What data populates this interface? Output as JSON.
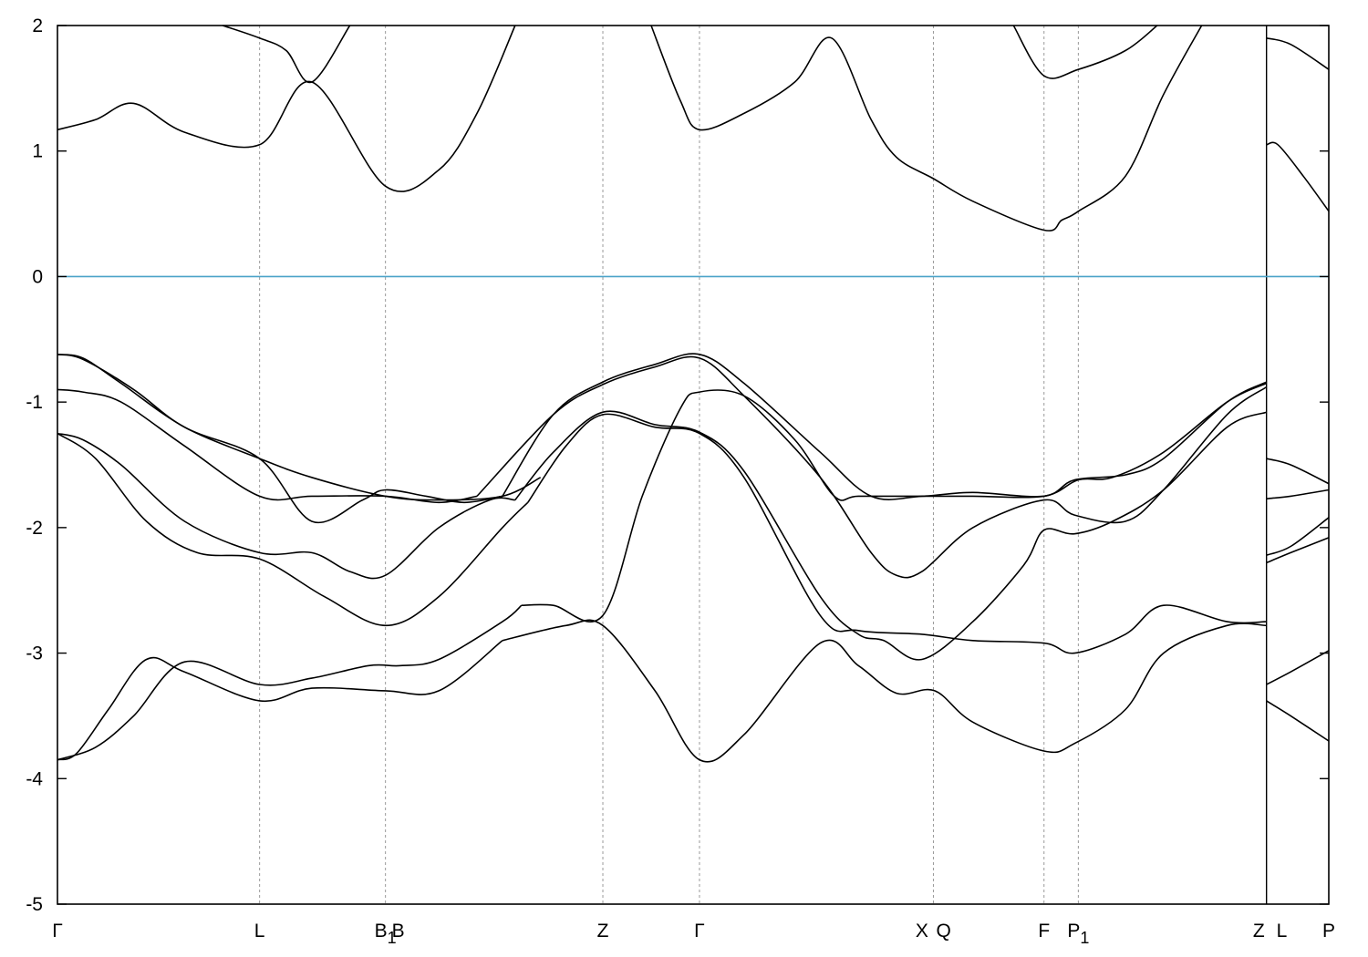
{
  "chart_data": {
    "type": "line",
    "title": "",
    "xlabel": "",
    "ylabel": "",
    "ylim": [
      -5,
      2
    ],
    "yticks": [
      2,
      1,
      0,
      -1,
      -2,
      -3,
      -4,
      -5
    ],
    "ytick_labels": [
      "2",
      "1",
      "0",
      "-1",
      "-2",
      "-3",
      "-4",
      "-5"
    ],
    "xlim": [
      0,
      1
    ],
    "high_symmetry_points": [
      {
        "label": "Γ",
        "sub": "",
        "x": 0.0
      },
      {
        "label": "L",
        "sub": "",
        "x": 0.159
      },
      {
        "label": "B",
        "sub": "1",
        "x": 0.258
      },
      {
        "label": "B",
        "sub": "",
        "x": 0.268
      },
      {
        "label": "Z",
        "sub": "",
        "x": 0.429
      },
      {
        "label": "Γ",
        "sub": "",
        "x": 0.505
      },
      {
        "label": "X",
        "sub": "",
        "x": 0.68
      },
      {
        "label": "Q",
        "sub": "",
        "x": 0.697
      },
      {
        "label": "F",
        "sub": "",
        "x": 0.776
      },
      {
        "label": "P",
        "sub": "1",
        "x": 0.803
      },
      {
        "label": "Z",
        "sub": "",
        "x": 0.945
      },
      {
        "label": "L",
        "sub": "",
        "x": 0.963
      },
      {
        "label": "P",
        "sub": "",
        "x": 1.0
      }
    ],
    "dashed_lines_x": [
      0.159,
      0.258,
      0.429,
      0.505,
      0.689,
      0.776,
      0.803,
      0.951
    ],
    "discontinuity_x": 0.951,
    "fermi_level": 0,
    "series": [
      {
        "x": [
          0,
          0.03,
          0.06,
          0.1,
          0.159,
          0.2,
          0.245,
          0.27,
          0.3,
          0.35,
          0.365
        ],
        "y": [
          -3.85,
          -3.75,
          -3.5,
          -3.07,
          -3.25,
          -3.2,
          -3.1,
          -3.1,
          -3.05,
          -2.75,
          -2.62
        ]
      },
      {
        "x": [
          0.365,
          0.39,
          0.429,
          0.46,
          0.49,
          0.505,
          0.54,
          0.58,
          0.611,
          0.63,
          0.68,
          0.72,
          0.776,
          0.803,
          0.83,
          0.87,
          0.92,
          0.951
        ],
        "y": [
          -2.62,
          -2.62,
          -2.7,
          -1.75,
          -1.05,
          -0.92,
          -0.95,
          -1.3,
          -1.75,
          -1.75,
          -1.75,
          -1.75,
          -1.75,
          -1.62,
          -1.6,
          -1.4,
          -1.0,
          -0.85
        ]
      },
      {
        "x": [
          0,
          0.03,
          0.07,
          0.11,
          0.159,
          0.21,
          0.258,
          0.3,
          0.35,
          0.37
        ],
        "y": [
          -1.25,
          -1.45,
          -1.95,
          -2.2,
          -2.25,
          -2.55,
          -2.78,
          -2.55,
          -2.0,
          -1.8
        ]
      },
      {
        "x": [
          0.37,
          0.4,
          0.429,
          0.47,
          0.505,
          0.54,
          0.6,
          0.63,
          0.68,
          0.72,
          0.776,
          0.8,
          0.84,
          0.87,
          0.92,
          0.951
        ],
        "y": [
          -1.8,
          -1.35,
          -1.1,
          -1.2,
          -1.25,
          -1.6,
          -2.7,
          -2.82,
          -2.85,
          -2.9,
          -2.92,
          -3.0,
          -2.85,
          -2.62,
          -2.75,
          -2.75
        ]
      },
      {
        "x": [
          0,
          0.02,
          0.05,
          0.1,
          0.159,
          0.2,
          0.23,
          0.258,
          0.3,
          0.34,
          0.36
        ],
        "y": [
          -1.25,
          -1.3,
          -1.5,
          -1.95,
          -2.2,
          -2.2,
          -2.35,
          -2.38,
          -2.0,
          -1.78,
          -1.78
        ]
      },
      {
        "x": [
          0.36,
          0.39,
          0.429,
          0.47,
          0.505,
          0.54,
          0.6,
          0.63,
          0.65,
          0.68,
          0.72,
          0.76,
          0.776,
          0.8,
          0.83,
          0.87,
          0.92,
          0.951
        ],
        "y": [
          -1.78,
          -1.4,
          -1.08,
          -1.18,
          -1.24,
          -1.55,
          -2.55,
          -2.85,
          -2.9,
          -3.05,
          -2.75,
          -2.3,
          -2.02,
          -2.05,
          -1.95,
          -1.7,
          -1.2,
          -1.08
        ]
      },
      {
        "x": [
          0,
          0.02,
          0.05,
          0.1,
          0.159,
          0.2,
          0.258,
          0.3,
          0.33
        ],
        "y": [
          -0.9,
          -0.92,
          -1.0,
          -1.35,
          -1.75,
          -1.75,
          -1.75,
          -1.8,
          -1.75
        ]
      },
      {
        "x": [
          0.33,
          0.39,
          0.429,
          0.47,
          0.505,
          0.54,
          0.6,
          0.64,
          0.66,
          0.68,
          0.72,
          0.776,
          0.8,
          0.84,
          0.87,
          0.92,
          0.951
        ],
        "y": [
          -1.75,
          -1.1,
          -0.86,
          -0.72,
          -0.65,
          -0.95,
          -1.6,
          -2.2,
          -2.38,
          -2.35,
          -2.0,
          -1.78,
          -1.9,
          -1.95,
          -1.7,
          -1.1,
          -0.88
        ]
      },
      {
        "x": [
          0,
          0.02,
          0.05,
          0.1,
          0.159,
          0.2,
          0.24,
          0.258,
          0.29,
          0.32,
          0.35
        ],
        "y": [
          -0.62,
          -0.65,
          -0.85,
          -1.2,
          -1.45,
          -1.95,
          -1.78,
          -1.7,
          -1.75,
          -1.8,
          -1.75
        ]
      },
      {
        "x": [
          0.35,
          0.39,
          0.429,
          0.47,
          0.505,
          0.54,
          0.6,
          0.64,
          0.68,
          0.72,
          0.776,
          0.8,
          0.84,
          0.87,
          0.92,
          0.951
        ],
        "y": [
          -1.75,
          -1.1,
          -0.84,
          -0.7,
          -0.62,
          -0.85,
          -1.4,
          -1.75,
          -1.75,
          -1.72,
          -1.75,
          -1.62,
          -1.58,
          -1.45,
          -1.0,
          -0.84
        ]
      },
      {
        "x": [
          0,
          0.02,
          0.06,
          0.1,
          0.159,
          0.2,
          0.258,
          0.3,
          0.35,
          0.38
        ],
        "y": [
          -0.62,
          -0.66,
          -0.9,
          -1.2,
          -1.45,
          -1.6,
          -1.75,
          -1.78,
          -1.75,
          -1.6
        ]
      },
      {
        "x": [
          0,
          0.015,
          0.04,
          0.07,
          0.1,
          0.159,
          0.2,
          0.258,
          0.3,
          0.35
        ],
        "y": [
          -3.85,
          -3.8,
          -3.45,
          -3.05,
          -3.15,
          -3.38,
          -3.28,
          -3.3,
          -3.3,
          -2.9
        ]
      },
      {
        "x": [
          0.35,
          0.4,
          0.429,
          0.47,
          0.505,
          0.54,
          0.6,
          0.63,
          0.66,
          0.69,
          0.72,
          0.776,
          0.8,
          0.84,
          0.87,
          0.92,
          0.951
        ],
        "y": [
          -2.9,
          -2.78,
          -2.78,
          -3.3,
          -3.85,
          -3.65,
          -2.92,
          -3.1,
          -3.32,
          -3.3,
          -3.55,
          -3.78,
          -3.72,
          -3.45,
          -3.0,
          -2.78,
          -2.78
        ]
      },
      {
        "x": [
          0,
          0.03,
          0.06,
          0.1,
          0.159,
          0.2,
          0.258,
          0.3,
          0.33,
          0.36
        ],
        "y": [
          1.17,
          1.25,
          1.38,
          1.15,
          1.05,
          1.55,
          0.72,
          0.85,
          1.3,
          2.0
        ]
      },
      {
        "x": [
          0.467,
          0.49,
          0.505,
          0.54,
          0.58,
          0.609,
          0.64,
          0.66,
          0.689,
          0.72,
          0.776,
          0.79,
          0.803,
          0.84,
          0.87,
          0.9
        ],
        "y": [
          2.0,
          1.4,
          1.17,
          1.3,
          1.55,
          1.9,
          1.25,
          0.95,
          0.78,
          0.6,
          0.37,
          0.45,
          0.52,
          0.8,
          1.45,
          2.0
        ]
      },
      {
        "x": [
          0.13,
          0.159,
          0.18,
          0.2,
          0.23
        ],
        "y": [
          2.0,
          1.9,
          1.8,
          1.55,
          2.0
        ]
      },
      {
        "x": [
          0.752,
          0.776,
          0.803,
          0.84,
          0.865
        ],
        "y": [
          2.0,
          1.6,
          1.65,
          1.8,
          2.0
        ]
      },
      {
        "x": [
          0.951,
          0.97,
          1.0
        ],
        "y": [
          1.9,
          1.85,
          1.65
        ]
      },
      {
        "x": [
          0.951,
          0.96,
          0.98,
          1.0
        ],
        "y": [
          1.05,
          1.05,
          0.8,
          0.52
        ]
      },
      {
        "x": [
          0.951,
          0.97,
          1.0
        ],
        "y": [
          -1.45,
          -1.5,
          -1.65
        ]
      },
      {
        "x": [
          0.951,
          0.97,
          1.0
        ],
        "y": [
          -1.77,
          -1.75,
          -1.7
        ]
      },
      {
        "x": [
          0.951,
          0.97,
          1.0
        ],
        "y": [
          -2.22,
          -2.15,
          -1.92
        ]
      },
      {
        "x": [
          0.951,
          0.97,
          1.0
        ],
        "y": [
          -2.28,
          -2.2,
          -2.08
        ]
      },
      {
        "x": [
          0.951,
          0.97,
          1.0
        ],
        "y": [
          -3.25,
          -3.15,
          -2.98
        ]
      },
      {
        "x": [
          0.951,
          0.97,
          1.0
        ],
        "y": [
          -3.38,
          -3.5,
          -3.7
        ]
      }
    ]
  }
}
